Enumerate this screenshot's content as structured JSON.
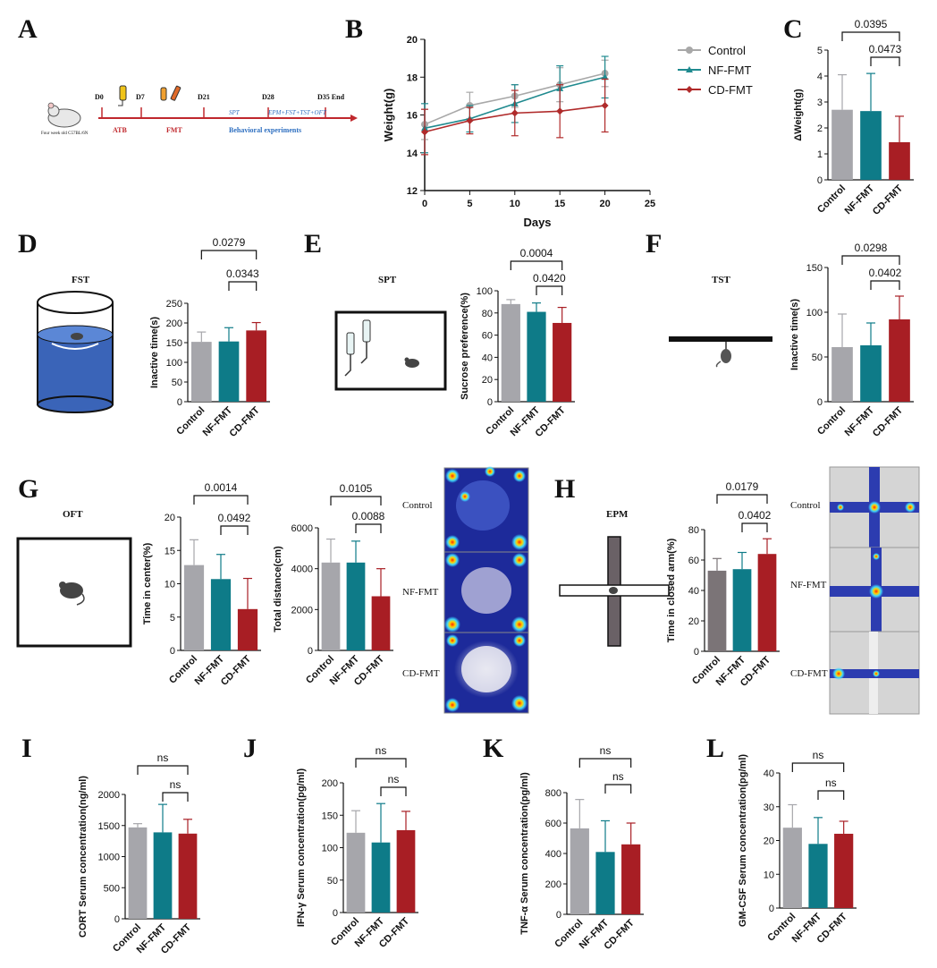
{
  "colors": {
    "control": "#a6a6ab",
    "nf": "#0e7b88",
    "cd": "#a81e24",
    "epm_control": "#7b7477",
    "line_control": "#a8a8a8",
    "line_nf": "#1f8a8f",
    "line_cd": "#b02a2a"
  },
  "groups": [
    "Control",
    "NF-FMT",
    "CD-FMT"
  ],
  "panelA": {
    "letter": "A",
    "days": [
      "D0",
      "D7",
      "D21",
      "D28",
      "D35 End"
    ],
    "atb": "ATB",
    "fmt": "FMT",
    "spt": "SPT",
    "tests": "EPM+FST+TST+OFT",
    "behav": "Behavioral experiments",
    "mouse": "Four week old C57BL/6N"
  },
  "chart_data": [
    {
      "id": "B",
      "type": "line",
      "letter": "B",
      "xlabel": "Days",
      "ylabel": "Weight(g)",
      "xlim": [
        0,
        25
      ],
      "ylim": [
        12,
        20
      ],
      "xticks": [
        "0",
        "5",
        "10",
        "15",
        "20",
        "25"
      ],
      "yticks": [
        "12",
        "14",
        "16",
        "18",
        "20"
      ],
      "legend_position": "top-right",
      "series": [
        {
          "name": "Control",
          "x": [
            0,
            5,
            10,
            15,
            20
          ],
          "y": [
            15.5,
            16.5,
            17.0,
            17.6,
            18.2
          ],
          "err": [
            0.8,
            0.7,
            0.6,
            0.9,
            0.7
          ]
        },
        {
          "name": "NF-FMT",
          "x": [
            0,
            5,
            10,
            15,
            20
          ],
          "y": [
            15.3,
            15.8,
            16.6,
            17.4,
            18.0
          ],
          "err": [
            1.3,
            0.7,
            1.0,
            1.2,
            1.1
          ]
        },
        {
          "name": "CD-FMT",
          "x": [
            0,
            5,
            10,
            15,
            20
          ],
          "y": [
            15.1,
            15.7,
            16.1,
            16.2,
            16.5
          ],
          "err": [
            1.2,
            0.7,
            1.2,
            1.4,
            1.4
          ]
        }
      ]
    },
    {
      "id": "C",
      "type": "bar",
      "letter": "C",
      "ylabel": "ΔWeight(g)",
      "ylim": [
        0,
        5
      ],
      "yticks": [
        "0",
        "1",
        "2",
        "3",
        "4",
        "5"
      ],
      "values": [
        2.7,
        2.65,
        1.45
      ],
      "err": [
        1.35,
        1.45,
        1.0
      ],
      "sig": [
        {
          "label": "0.0395",
          "from": 0,
          "to": 2
        },
        {
          "label": "0.0473",
          "from": 1,
          "to": 2
        }
      ]
    },
    {
      "id": "D",
      "type": "bar",
      "letter": "D",
      "test": "FST",
      "ylabel": "Inactive time(s)",
      "ylim": [
        0,
        250
      ],
      "yticks": [
        "0",
        "50",
        "100",
        "150",
        "200",
        "250"
      ],
      "values": [
        152,
        153,
        181
      ],
      "err": [
        25,
        35,
        20
      ],
      "sig": [
        {
          "label": "0.0279",
          "from": 0,
          "to": 2
        },
        {
          "label": "0.0343",
          "from": 1,
          "to": 2
        }
      ]
    },
    {
      "id": "E",
      "type": "bar",
      "letter": "E",
      "test": "SPT",
      "ylabel": "Sucrose preference(%)",
      "ylim": [
        0,
        100
      ],
      "yticks": [
        "0",
        "20",
        "40",
        "60",
        "80",
        "100"
      ],
      "values": [
        88,
        81,
        71
      ],
      "err": [
        4,
        8,
        14
      ],
      "sig": [
        {
          "label": "0.0004",
          "from": 0,
          "to": 2
        },
        {
          "label": "0.0420",
          "from": 1,
          "to": 2
        }
      ]
    },
    {
      "id": "F",
      "type": "bar",
      "letter": "F",
      "test": "TST",
      "ylabel": "Inactive time(s)",
      "ylim": [
        0,
        150
      ],
      "yticks": [
        "0",
        "50",
        "100",
        "150"
      ],
      "values": [
        61,
        63,
        92
      ],
      "err": [
        37,
        25,
        26
      ],
      "sig": [
        {
          "label": "0.0298",
          "from": 0,
          "to": 2
        },
        {
          "label": "0.0402",
          "from": 1,
          "to": 2
        }
      ]
    },
    {
      "id": "G1",
      "type": "bar",
      "letter": "G",
      "test": "OFT",
      "ylabel": "Time in center(%)",
      "ylim": [
        0,
        20
      ],
      "yticks": [
        "0",
        "5",
        "10",
        "15",
        "20"
      ],
      "values": [
        12.8,
        10.7,
        6.2
      ],
      "err": [
        3.8,
        3.7,
        4.6
      ],
      "sig": [
        {
          "label": "0.0014",
          "from": 0,
          "to": 2
        },
        {
          "label": "0.0492",
          "from": 1,
          "to": 2
        }
      ]
    },
    {
      "id": "G2",
      "type": "bar",
      "ylabel": "Total distance(cm)",
      "ylim": [
        0,
        6000
      ],
      "yticks": [
        "0",
        "2000",
        "4000",
        "6000"
      ],
      "values": [
        4300,
        4300,
        2650
      ],
      "err": [
        1150,
        1050,
        1350
      ],
      "sig": [
        {
          "label": "0.0105",
          "from": 0,
          "to": 2
        },
        {
          "label": "0.0088",
          "from": 1,
          "to": 2
        }
      ]
    },
    {
      "id": "H",
      "type": "bar",
      "letter": "H",
      "test": "EPM",
      "ylabel": "Time in closed arm(%)",
      "ylim": [
        0,
        80
      ],
      "yticks": [
        "0",
        "20",
        "40",
        "60",
        "80"
      ],
      "values": [
        53,
        54,
        64
      ],
      "err": [
        8,
        11,
        10
      ],
      "sig": [
        {
          "label": "0.0179",
          "from": 0,
          "to": 2
        },
        {
          "label": "0.0402",
          "from": 1,
          "to": 2
        }
      ]
    },
    {
      "id": "I",
      "type": "bar",
      "letter": "I",
      "ylabel": "CORT Serum concentration(ng/ml)",
      "ylim": [
        0,
        2000
      ],
      "yticks": [
        "0",
        "500",
        "1000",
        "1500",
        "2000"
      ],
      "values": [
        1470,
        1390,
        1370
      ],
      "err": [
        60,
        450,
        230
      ],
      "sig": [
        {
          "label": "ns",
          "from": 0,
          "to": 2
        },
        {
          "label": "ns",
          "from": 1,
          "to": 2
        }
      ]
    },
    {
      "id": "J",
      "type": "bar",
      "letter": "J",
      "ylabel": "IFN-γ Serum concentration(pg/ml)",
      "ylim": [
        0,
        200
      ],
      "yticks": [
        "0",
        "50",
        "100",
        "150",
        "200"
      ],
      "values": [
        123,
        108,
        127
      ],
      "err": [
        34,
        60,
        29
      ],
      "sig": [
        {
          "label": "ns",
          "from": 0,
          "to": 2
        },
        {
          "label": "ns",
          "from": 1,
          "to": 2
        }
      ]
    },
    {
      "id": "K",
      "type": "bar",
      "letter": "K",
      "ylabel": "TNF-α Serum concentration(pg/ml)",
      "ylim": [
        0,
        800
      ],
      "yticks": [
        "0",
        "200",
        "400",
        "600",
        "800"
      ],
      "values": [
        565,
        410,
        460
      ],
      "err": [
        190,
        205,
        140
      ],
      "sig": [
        {
          "label": "ns",
          "from": 0,
          "to": 2
        },
        {
          "label": "ns",
          "from": 1,
          "to": 2
        }
      ]
    },
    {
      "id": "L",
      "type": "bar",
      "letter": "L",
      "ylabel": "GM-CSF Serum concentration(pg/ml)",
      "ylim": [
        0,
        40
      ],
      "yticks": [
        "0",
        "10",
        "20",
        "30",
        "40"
      ],
      "values": [
        23.8,
        19.0,
        22.0
      ],
      "err": [
        6.8,
        7.8,
        3.7
      ],
      "sig": [
        {
          "label": "ns",
          "from": 0,
          "to": 2
        },
        {
          "label": "ns",
          "from": 1,
          "to": 2
        }
      ]
    }
  ],
  "heatmaps": {
    "oft": [
      "Control",
      "NF-FMT",
      "CD-FMT"
    ],
    "epm": [
      "Control",
      "NF-FMT",
      "CD-FMT"
    ]
  }
}
